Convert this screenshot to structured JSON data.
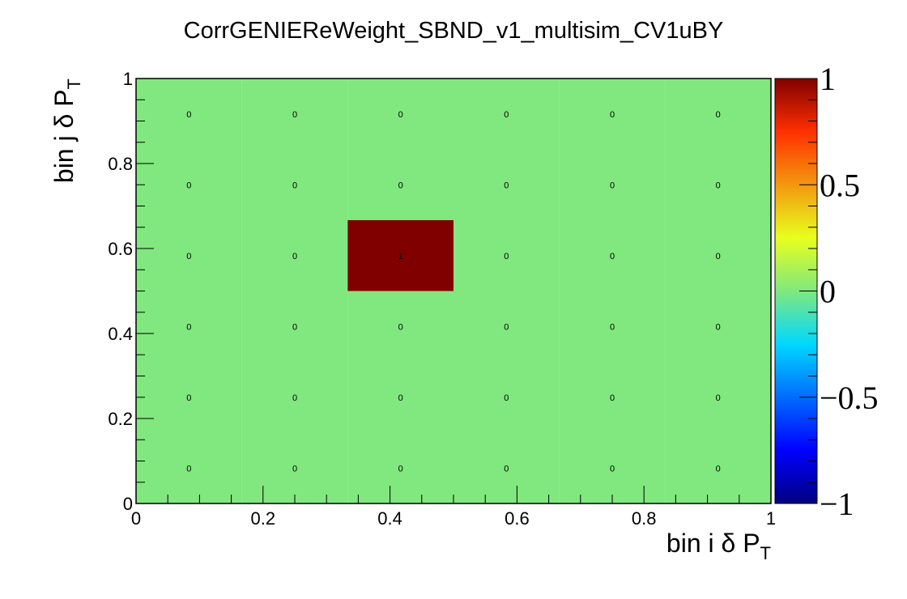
{
  "chart_data": {
    "type": "heatmap",
    "title": "CorrGENIEReWeight_SBND_v1_multisim_CV1uBY",
    "xlabel": {
      "main": "bin i δ P",
      "sub": "T"
    },
    "ylabel": {
      "main": "bin j δ P",
      "sub": "T"
    },
    "xlim": [
      0,
      1
    ],
    "ylim": [
      0,
      1
    ],
    "zlim": [
      -1,
      1
    ],
    "x_ticks": [
      "0",
      "0.2",
      "0.4",
      "0.6",
      "0.8",
      "1"
    ],
    "y_ticks": [
      "0",
      "0.2",
      "0.4",
      "0.6",
      "0.8",
      "1"
    ],
    "z_ticks": [
      "−1",
      "−0.5",
      "0",
      "0.5",
      "1"
    ],
    "nbins_x": 6,
    "nbins_y": 6,
    "values": [
      [
        0,
        0,
        0,
        0,
        0,
        0
      ],
      [
        0,
        0,
        0,
        0,
        0,
        0
      ],
      [
        0,
        0,
        1,
        0,
        0,
        0
      ],
      [
        0,
        0,
        0,
        0,
        0,
        0
      ],
      [
        0,
        0,
        0,
        0,
        0,
        0
      ],
      [
        0,
        0,
        0,
        0,
        0,
        0
      ]
    ],
    "cell_labels": [
      [
        "0",
        "0",
        "0",
        "0",
        "0",
        "0"
      ],
      [
        "0",
        "0",
        "0",
        "0",
        "0",
        "0"
      ],
      [
        "0",
        "0",
        "1",
        "0",
        "0",
        "0"
      ],
      [
        "0",
        "0",
        "0",
        "0",
        "0",
        "0"
      ],
      [
        "0",
        "0",
        "0",
        "0",
        "0",
        "0"
      ],
      [
        "0",
        "0",
        "0",
        "0",
        "0",
        "0"
      ]
    ],
    "colormap": "jet",
    "grid": false
  }
}
